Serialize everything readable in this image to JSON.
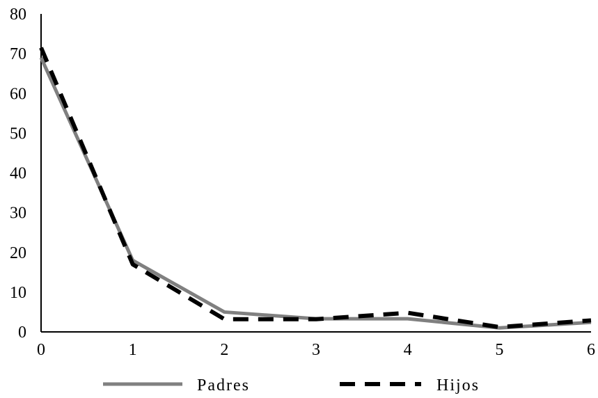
{
  "chart_data": {
    "type": "line",
    "title": "",
    "xlabel": "",
    "ylabel": "",
    "x": [
      0,
      1,
      2,
      3,
      4,
      5,
      6
    ],
    "xlim": [
      0,
      6
    ],
    "ylim": [
      0,
      80
    ],
    "xticks": [
      "0",
      "1",
      "2",
      "3",
      "4",
      "5",
      "6"
    ],
    "yticks": [
      "0",
      "10",
      "20",
      "30",
      "40",
      "50",
      "60",
      "70",
      "80"
    ],
    "grid": false,
    "legend_position": "bottom",
    "series": [
      {
        "name": "Padres",
        "values": [
          69,
          18,
          5,
          3.3,
          3.3,
          1,
          2.4
        ],
        "color": "#808080",
        "style": "solid"
      },
      {
        "name": "Hijos",
        "values": [
          71.5,
          17,
          3.2,
          3.2,
          4.8,
          1.2,
          2.9
        ],
        "color": "#000000",
        "style": "dashed"
      }
    ]
  }
}
